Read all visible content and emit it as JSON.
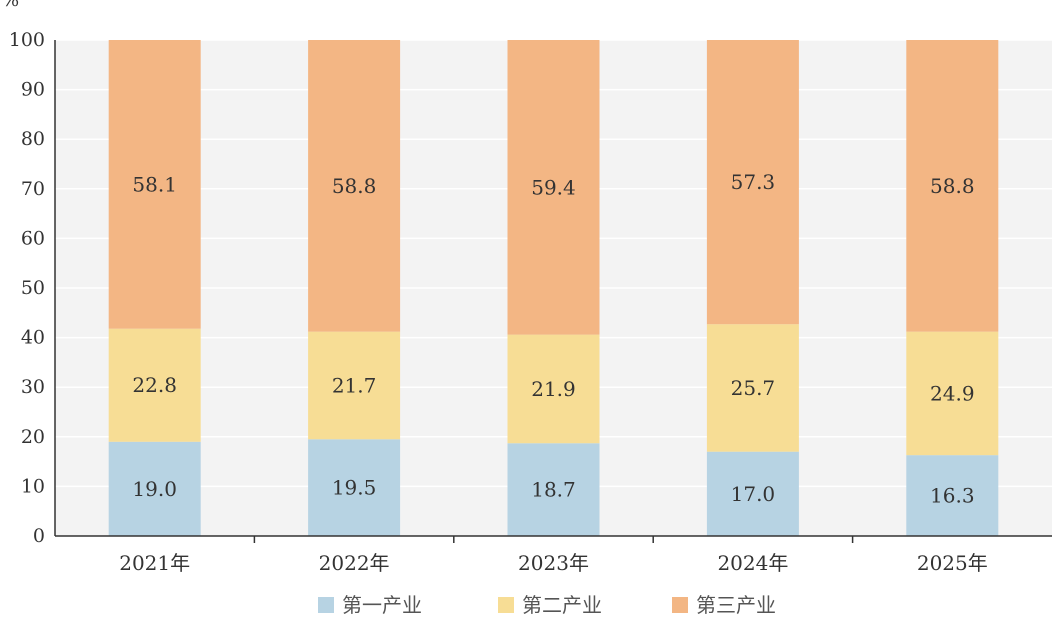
{
  "chart_data": {
    "type": "bar",
    "stacked": true,
    "unit": "%",
    "categories": [
      "2021年",
      "2022年",
      "2023年",
      "2024年",
      "2025年"
    ],
    "series": [
      {
        "name": "第一产业",
        "color": "#b7d3e3",
        "values": [
          19.0,
          19.5,
          18.7,
          17.0,
          16.3
        ]
      },
      {
        "name": "第二产业",
        "color": "#f7dd95",
        "values": [
          22.8,
          21.7,
          21.9,
          25.7,
          24.9
        ]
      },
      {
        "name": "第三产业",
        "color": "#f3b684",
        "values": [
          58.1,
          58.8,
          59.4,
          57.3,
          58.8
        ]
      }
    ],
    "ylim": [
      0,
      100
    ],
    "yticks": [
      0,
      10,
      20,
      30,
      40,
      50,
      60,
      70,
      80,
      90,
      100
    ],
    "grid": true,
    "legend_position": "bottom"
  }
}
